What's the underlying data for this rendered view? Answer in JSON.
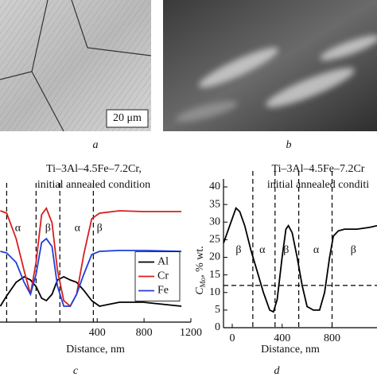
{
  "figure": {
    "panels": [
      {
        "label": "a",
        "scale_bar": "20 μm"
      },
      {
        "label": "b"
      },
      {
        "label": "c"
      },
      {
        "label": "d"
      }
    ]
  },
  "chart_data": [
    {
      "type": "line",
      "title": "Ti–3Al–4.5Fe–7.2Cr,",
      "subtitle": "initial annealed condition",
      "xlabel": "Distance, nm",
      "x": [
        -427,
        -373,
        -292,
        -224,
        -170,
        -122,
        -75,
        -34,
        14,
        61,
        115,
        170,
        224,
        285,
        353,
        420,
        590,
        793,
        1119
      ],
      "series": [
        {
          "name": "Al",
          "color": "#000000",
          "values": [
            12.9,
            21.3,
            32.3,
            36.8,
            34.2,
            29.0,
            19.4,
            17.4,
            22.6,
            34.2,
            36.8,
            34.2,
            32.3,
            25.8,
            17.4,
            12.9,
            16.1,
            16.1,
            12.9
          ]
        },
        {
          "name": "Cr",
          "color": "#d62020",
          "values": [
            90.3,
            88.4,
            67.7,
            41.9,
            22.6,
            48.4,
            87.1,
            92.3,
            80.6,
            41.9,
            17.4,
            12.9,
            22.6,
            54.8,
            83.9,
            88.4,
            90.3,
            89.7,
            89.7
          ]
        },
        {
          "name": "Fe",
          "color": "#1f3fd6",
          "values": [
            57.4,
            56.1,
            48.4,
            32.3,
            22.6,
            38.7,
            64.5,
            67.7,
            61.3,
            29.0,
            12.9,
            12.9,
            22.6,
            38.7,
            54.8,
            57.4,
            58.1,
            58.1,
            57.4
          ]
        }
      ],
      "xlim": [
        -430,
        1200
      ],
      "xticks": [
        400,
        800,
        1200
      ],
      "ylim": [
        0,
        100
      ],
      "legend": "center-right",
      "vlines": [
        -373,
        -122,
        81,
        367
      ],
      "annotations": [
        {
          "text": "α",
          "x": -278,
          "y": 76
        },
        {
          "text": "β",
          "x": -20,
          "y": 76
        },
        {
          "text": "α",
          "x": 231,
          "y": 76
        },
        {
          "text": "β",
          "x": 420,
          "y": 76
        }
      ]
    },
    {
      "type": "line",
      "title": "Ti–3Al–4.5Fe–7.2Cr",
      "subtitle": "initial annealed conditi",
      "xlabel": "Distance, nm",
      "ylabel": {
        "symbol": "C",
        "subscript": "Mo",
        "unit": ", % wt."
      },
      "x": [
        -70,
        -30,
        0,
        30,
        60,
        100,
        150,
        200,
        250,
        300,
        330,
        360,
        400,
        430,
        450,
        480,
        520,
        560,
        600,
        650,
        700,
        740,
        780,
        810,
        850,
        900,
        1000,
        1100,
        1160
      ],
      "series": [
        {
          "color": "#000000",
          "values": [
            24,
            28,
            31,
            34,
            33,
            29,
            22,
            16,
            10,
            5,
            4.5,
            8,
            20,
            28,
            29,
            27,
            20,
            12,
            6,
            5,
            5,
            10,
            20,
            26,
            27.5,
            28,
            28,
            28.5,
            29
          ]
        }
      ],
      "xlim": [
        -70,
        1160
      ],
      "xticks": [
        0,
        400,
        800
      ],
      "ylim": [
        0,
        40
      ],
      "yticks": [
        0,
        5,
        10,
        15,
        20,
        25,
        30,
        35,
        40
      ],
      "vlines": [
        165,
        343,
        533,
        800
      ],
      "hline": 12,
      "annotations": [
        {
          "text": "β",
          "x": 51,
          "y": 22
        },
        {
          "text": "α",
          "x": 241,
          "y": 22
        },
        {
          "text": "β",
          "x": 432,
          "y": 22
        },
        {
          "text": "α",
          "x": 673,
          "y": 22
        },
        {
          "text": "β",
          "x": 971,
          "y": 22
        }
      ]
    }
  ]
}
